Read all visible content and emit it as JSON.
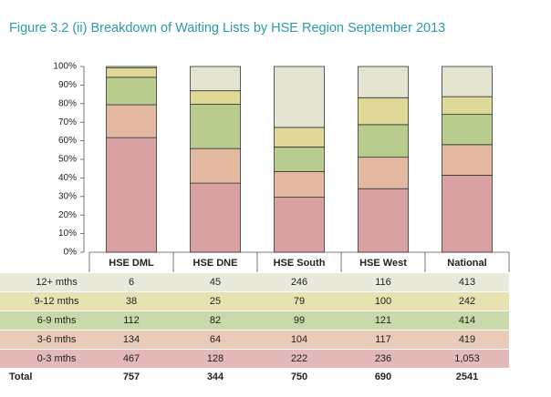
{
  "chart_data": {
    "type": "bar",
    "stacking": "percent",
    "title": "Figure 3.2 (ii) Breakdown of Waiting Lists by HSE Region September 2013",
    "categories": [
      "HSE DML",
      "HSE DNE",
      "HSE South",
      "HSE West",
      "National"
    ],
    "series": [
      {
        "name": "0-3 mths",
        "color": "#d9a1a1",
        "values": [
          467,
          128,
          222,
          236,
          1053
        ],
        "value_labels": [
          "467",
          "128",
          "222",
          "236",
          "1,053"
        ]
      },
      {
        "name": "3-6 mths",
        "color": "#e2b9a0",
        "values": [
          134,
          64,
          104,
          117,
          419
        ]
      },
      {
        "name": "6-9 mths",
        "color": "#b8cc8d",
        "values": [
          112,
          82,
          99,
          121,
          414
        ]
      },
      {
        "name": "9-12 mths",
        "color": "#e0d897",
        "values": [
          38,
          25,
          79,
          100,
          242
        ]
      },
      {
        "name": "12+ mths",
        "color": "#e3e3d0",
        "values": [
          6,
          45,
          246,
          116,
          413
        ]
      }
    ],
    "totals_label": "Total",
    "totals": [
      757,
      344,
      750,
      690,
      2541
    ],
    "ylim": [
      0,
      100
    ],
    "yticks": [
      {
        "value": 0,
        "label": "0%"
      },
      {
        "value": 10,
        "label": "10%"
      },
      {
        "value": 20,
        "label": "20%"
      },
      {
        "value": 30,
        "label": "30%"
      },
      {
        "value": 40,
        "label": "40%"
      },
      {
        "value": 50,
        "label": "50%"
      },
      {
        "value": 60,
        "label": "60%"
      },
      {
        "value": 70,
        "label": "70%"
      },
      {
        "value": 80,
        "label": "80%"
      },
      {
        "value": 90,
        "label": "90%"
      },
      {
        "value": 100,
        "label": "100%"
      }
    ],
    "grid": false
  }
}
